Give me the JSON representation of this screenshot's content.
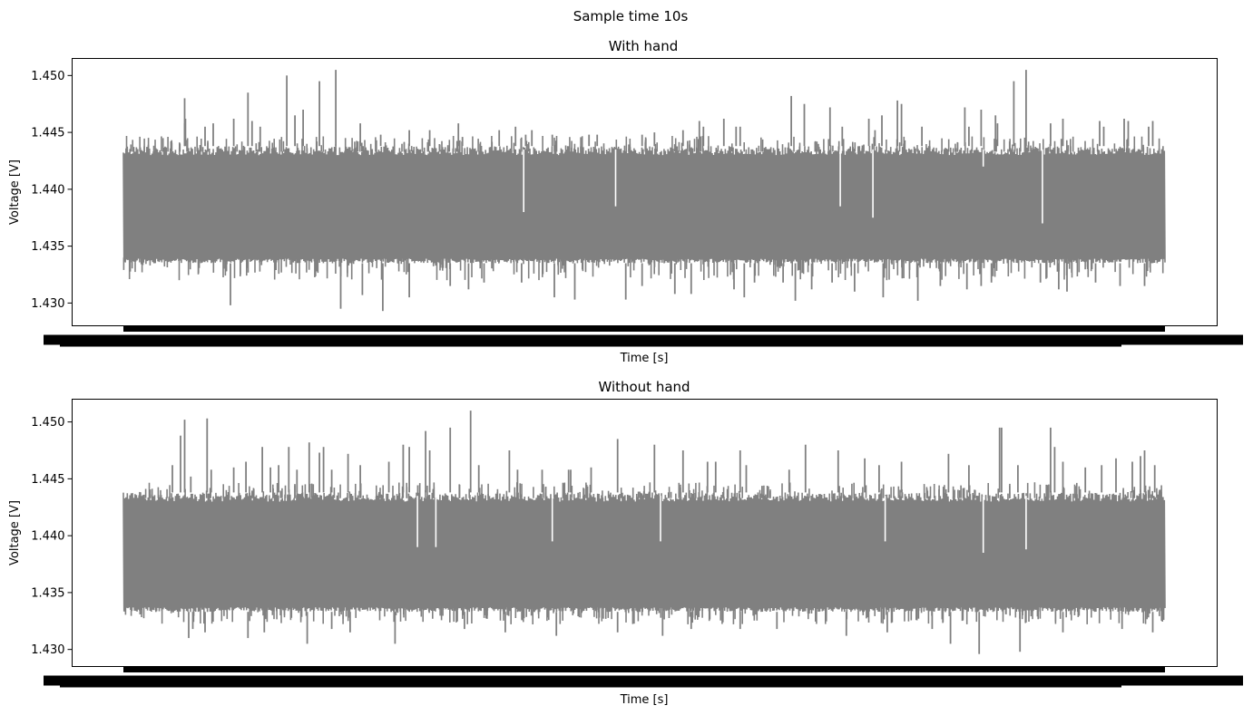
{
  "figure": {
    "title": "Sample time 10s"
  },
  "colors": {
    "line": "#808080",
    "axes": "#000000",
    "background": "#ffffff"
  },
  "chart_data": [
    {
      "type": "line",
      "title": "With hand",
      "xlabel": "Time [s]",
      "ylabel": "Voltage [V]",
      "ylim": [
        1.428,
        1.4515
      ],
      "yticks": [
        "1.430",
        "1.435",
        "1.440",
        "1.445",
        "1.450"
      ],
      "grid": false,
      "legend": "none",
      "x_ticklabels": "illegible (overlapping)",
      "series": [
        {
          "color": "#808080",
          "n_points": 1600,
          "baseline_min": 1.4335,
          "baseline_max": 1.4438,
          "typical_min": 1.432,
          "max": 1.4506,
          "min": 1.4293,
          "spikes_up": [
            [
              0.15,
              1.448
            ],
            [
              0.15,
              1.4458
            ],
            [
              0.152,
              1.4462
            ],
            [
              0.2,
              1.4455
            ],
            [
              0.22,
              1.4458
            ],
            [
              0.27,
              1.4462
            ],
            [
              0.305,
              1.4485
            ],
            [
              0.315,
              1.446
            ],
            [
              0.335,
              1.4455
            ],
            [
              0.4,
              1.45
            ],
            [
              0.44,
              1.447
            ],
            [
              0.42,
              1.4465
            ],
            [
              0.48,
              1.4495
            ],
            [
              0.52,
              1.4505
            ],
            [
              0.58,
              1.4458
            ],
            [
              0.63,
              1.4448
            ],
            [
              0.7,
              1.4452
            ],
            [
              0.75,
              1.4452
            ],
            [
              0.82,
              1.4458
            ],
            [
              0.83,
              1.4446
            ],
            [
              0.92,
              1.4452
            ],
            [
              0.96,
              1.4455
            ],
            [
              0.985,
              1.4448
            ],
            [
              1.0,
              1.4452
            ],
            [
              1.05,
              1.4448
            ],
            [
              1.14,
              1.4448
            ],
            [
              1.16,
              1.4448
            ],
            [
              1.27,
              1.4448
            ],
            [
              1.3,
              1.445
            ],
            [
              1.37,
              1.4452
            ],
            [
              1.41,
              1.446
            ],
            [
              1.42,
              1.4455
            ],
            [
              1.47,
              1.4462
            ],
            [
              1.5,
              1.4455
            ],
            [
              1.51,
              1.4455
            ],
            [
              1.635,
              1.4482
            ],
            [
              1.667,
              1.4475
            ],
            [
              1.73,
              1.4472
            ],
            [
              1.76,
              1.4455
            ],
            [
              1.825,
              1.4462
            ],
            [
              1.84,
              1.4452
            ],
            [
              1.857,
              1.4465
            ],
            [
              1.895,
              1.4478
            ],
            [
              1.905,
              1.4475
            ],
            [
              1.955,
              1.4455
            ],
            [
              2.06,
              1.4472
            ],
            [
              2.07,
              1.4455
            ],
            [
              2.1,
              1.447
            ],
            [
              2.135,
              1.4465
            ],
            [
              2.14,
              1.4458
            ],
            [
              2.18,
              1.4495
            ],
            [
              2.21,
              1.4505
            ],
            [
              2.27,
              1.4458
            ],
            [
              2.3,
              1.4462
            ],
            [
              2.39,
              1.446
            ],
            [
              2.4,
              1.4455
            ],
            [
              2.45,
              1.4462
            ],
            [
              2.46,
              1.446
            ],
            [
              2.51,
              1.4455
            ],
            [
              2.52,
              1.446
            ]
          ],
          "spikes_down": [
            [
              0.262,
              1.4298
            ],
            [
              0.532,
              1.4295
            ],
            [
              0.585,
              1.4307
            ],
            [
              0.635,
              1.4293
            ],
            [
              0.7,
              1.4305
            ],
            [
              0.8,
              1.4315
            ],
            [
              0.845,
              1.4312
            ],
            [
              0.883,
              1.4318
            ],
            [
              0.975,
              1.4318
            ],
            [
              1.055,
              1.4305
            ],
            [
              1.105,
              1.4303
            ],
            [
              1.23,
              1.4303
            ],
            [
              1.27,
              1.4315
            ],
            [
              1.35,
              1.4308
            ],
            [
              1.39,
              1.4308
            ],
            [
              1.495,
              1.4312
            ],
            [
              1.52,
              1.4305
            ],
            [
              1.545,
              1.4318
            ],
            [
              1.615,
              1.4318
            ],
            [
              1.645,
              1.4302
            ],
            [
              1.685,
              1.4312
            ],
            [
              1.735,
              1.4318
            ],
            [
              1.79,
              1.431
            ],
            [
              1.86,
              1.4305
            ],
            [
              1.945,
              1.4302
            ],
            [
              2.0,
              1.4315
            ],
            [
              2.065,
              1.4312
            ],
            [
              2.1,
              1.4315
            ],
            [
              2.125,
              1.4318
            ],
            [
              2.245,
              1.4318
            ],
            [
              2.29,
              1.4312
            ],
            [
              2.31,
              1.431
            ],
            [
              2.38,
              1.4318
            ],
            [
              2.44,
              1.4315
            ],
            [
              2.5,
              1.4315
            ]
          ],
          "gaps_white": [
            [
              0.98,
              1.438
            ],
            [
              1.205,
              1.4385
            ],
            [
              1.755,
              1.4385
            ],
            [
              1.835,
              1.4375
            ],
            [
              2.105,
              1.442
            ],
            [
              2.25,
              1.437
            ]
          ]
        }
      ]
    },
    {
      "type": "line",
      "title": "Without hand",
      "xlabel": "Time [s]",
      "ylabel": "Voltage [V]",
      "ylim": [
        1.4285,
        1.452
      ],
      "yticks": [
        "1.430",
        "1.435",
        "1.440",
        "1.445",
        "1.450"
      ],
      "grid": false,
      "legend": "none",
      "x_ticklabels": "illegible (overlapping)",
      "series": [
        {
          "color": "#808080",
          "n_points": 1600,
          "baseline_min": 1.4333,
          "baseline_max": 1.4438,
          "typical_min": 1.4322,
          "max": 1.451,
          "min": 1.4296,
          "spikes_up": [
            [
              0.12,
              1.4462
            ],
            [
              0.14,
              1.4488
            ],
            [
              0.15,
              1.4502
            ],
            [
              0.165,
              1.4452
            ],
            [
              0.205,
              1.4503
            ],
            [
              0.215,
              1.4458
            ],
            [
              0.27,
              1.446
            ],
            [
              0.3,
              1.4465
            ],
            [
              0.34,
              1.4478
            ],
            [
              0.36,
              1.446
            ],
            [
              0.38,
              1.4462
            ],
            [
              0.405,
              1.4478
            ],
            [
              0.425,
              1.4458
            ],
            [
              0.455,
              1.4482
            ],
            [
              0.48,
              1.4473
            ],
            [
              0.49,
              1.4478
            ],
            [
              0.51,
              1.4458
            ],
            [
              0.55,
              1.4472
            ],
            [
              0.58,
              1.4462
            ],
            [
              0.65,
              1.4465
            ],
            [
              0.685,
              1.448
            ],
            [
              0.7,
              1.4478
            ],
            [
              0.74,
              1.4492
            ],
            [
              0.75,
              1.4475
            ],
            [
              0.8,
              1.4495
            ],
            [
              0.85,
              1.451
            ],
            [
              0.87,
              1.4462
            ],
            [
              0.945,
              1.4475
            ],
            [
              0.965,
              1.4458
            ],
            [
              1.025,
              1.4458
            ],
            [
              1.09,
              1.4458
            ],
            [
              1.095,
              1.4458
            ],
            [
              1.145,
              1.446
            ],
            [
              1.21,
              1.4485
            ],
            [
              1.3,
              1.448
            ],
            [
              1.37,
              1.4475
            ],
            [
              1.43,
              1.4465
            ],
            [
              1.45,
              1.4465
            ],
            [
              1.51,
              1.4475
            ],
            [
              1.525,
              1.4462
            ],
            [
              1.63,
              1.4458
            ],
            [
              1.67,
              1.448
            ],
            [
              1.75,
              1.4475
            ],
            [
              1.815,
              1.4468
            ],
            [
              1.85,
              1.4462
            ],
            [
              1.905,
              1.4465
            ],
            [
              2.02,
              1.4472
            ],
            [
              2.07,
              1.4462
            ],
            [
              2.145,
              1.4495
            ],
            [
              2.15,
              1.4495
            ],
            [
              2.19,
              1.4462
            ],
            [
              2.27,
              1.4495
            ],
            [
              2.28,
              1.4478
            ],
            [
              2.3,
              1.4465
            ],
            [
              2.355,
              1.446
            ],
            [
              2.395,
              1.4462
            ],
            [
              2.43,
              1.4468
            ],
            [
              2.47,
              1.4465
            ],
            [
              2.49,
              1.447
            ],
            [
              2.5,
              1.4475
            ],
            [
              2.525,
              1.4462
            ]
          ],
          "spikes_down": [
            [
              0.16,
              1.431
            ],
            [
              0.17,
              1.4318
            ],
            [
              0.2,
              1.4315
            ],
            [
              0.305,
              1.431
            ],
            [
              0.345,
              1.4315
            ],
            [
              0.45,
              1.4305
            ],
            [
              0.51,
              1.4318
            ],
            [
              0.555,
              1.4315
            ],
            [
              0.665,
              1.4305
            ],
            [
              0.835,
              1.4318
            ],
            [
              0.935,
              1.4315
            ],
            [
              1.06,
              1.4312
            ],
            [
              1.21,
              1.4315
            ],
            [
              1.32,
              1.4312
            ],
            [
              1.39,
              1.4318
            ],
            [
              1.51,
              1.4318
            ],
            [
              1.6,
              1.4318
            ],
            [
              1.77,
              1.4312
            ],
            [
              1.87,
              1.4315
            ],
            [
              1.98,
              1.4318
            ],
            [
              2.025,
              1.4305
            ],
            [
              2.095,
              1.4296
            ],
            [
              2.195,
              1.4298
            ],
            [
              2.3,
              1.4315
            ],
            [
              2.445,
              1.4318
            ],
            [
              2.52,
              1.4315
            ]
          ],
          "gaps_white": [
            [
              0.72,
              1.439
            ],
            [
              0.765,
              1.439
            ],
            [
              1.05,
              1.4395
            ],
            [
              1.315,
              1.4395
            ],
            [
              1.865,
              1.4395
            ],
            [
              2.105,
              1.4385
            ],
            [
              2.21,
              1.4388
            ]
          ]
        }
      ]
    }
  ]
}
